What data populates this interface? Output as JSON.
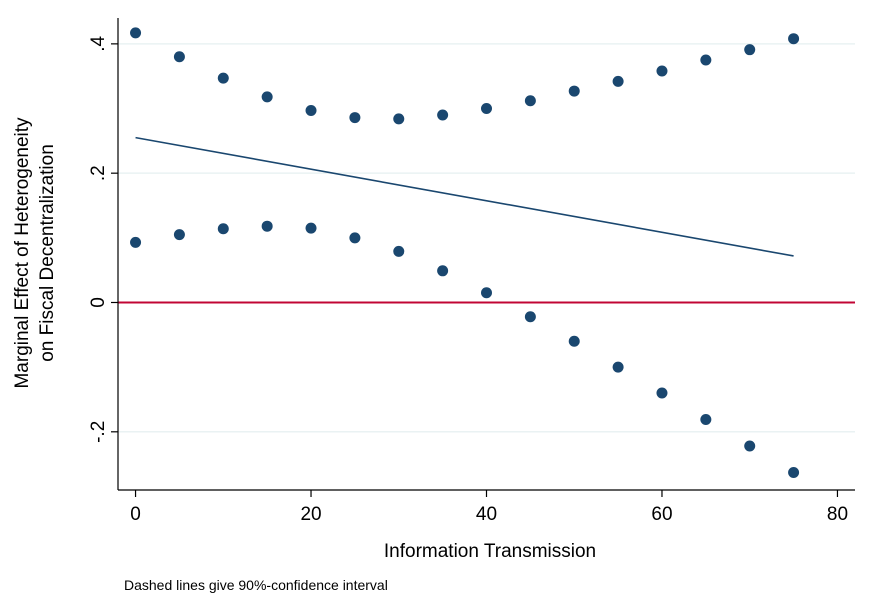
{
  "chart_data": {
    "type": "scatter",
    "xlabel": "Information Transmission",
    "ylabel_lines": [
      "Marginal Effect of Heterogeneity",
      "on Fiscal Decentralization"
    ],
    "note": "Dashed lines give 90%-confidence interval",
    "xlim": [
      -2,
      82
    ],
    "ylim": [
      -0.29,
      0.44
    ],
    "x_ticks": [
      0,
      20,
      40,
      60,
      80
    ],
    "x_tick_labels": [
      "0",
      "20",
      "40",
      "60",
      "80"
    ],
    "y_ticks": [
      -0.2,
      0,
      0.2,
      0.4
    ],
    "y_tick_labels": [
      "-.2",
      "0",
      ".2",
      ".4"
    ],
    "grid": true,
    "reference_line": {
      "y": 0,
      "color": "#c10534"
    },
    "colors": {
      "marker": "#1a476f",
      "line": "#1a476f",
      "grid": "#eaf2f3",
      "axis": "#000000"
    },
    "series": [
      {
        "kind": "line",
        "x": [
          0,
          75
        ],
        "y": [
          0.255,
          0.072
        ]
      },
      {
        "kind": "markers",
        "x": [
          0,
          5,
          10,
          15,
          20,
          25,
          30,
          35,
          40,
          45,
          50,
          55,
          60,
          65,
          70,
          75
        ],
        "y": [
          0.417,
          0.38,
          0.347,
          0.318,
          0.297,
          0.286,
          0.284,
          0.29,
          0.3,
          0.312,
          0.327,
          0.342,
          0.358,
          0.375,
          0.391,
          0.408
        ]
      },
      {
        "kind": "markers",
        "x": [
          0,
          5,
          10,
          15,
          20,
          25,
          30,
          35,
          40,
          45,
          50,
          55,
          60,
          65,
          70,
          75
        ],
        "y": [
          0.093,
          0.105,
          0.114,
          0.118,
          0.115,
          0.1,
          0.079,
          0.049,
          0.015,
          -0.022,
          -0.06,
          -0.1,
          -0.14,
          -0.181,
          -0.222,
          -0.263
        ]
      }
    ]
  }
}
